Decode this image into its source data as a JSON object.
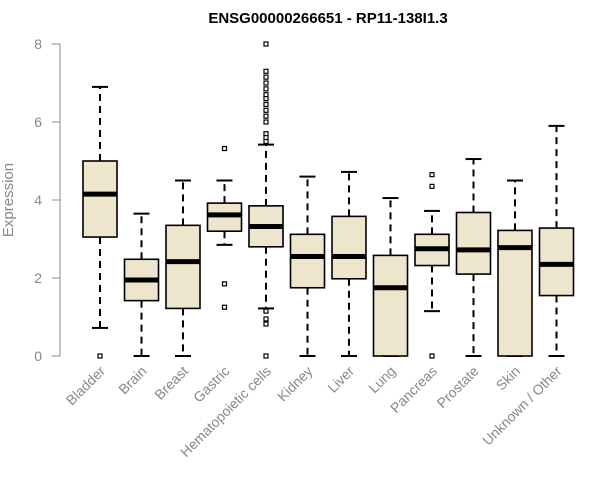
{
  "chart_data": {
    "type": "boxplot",
    "title": "ENSG00000266651 - RP11-138I1.3",
    "xlabel": "",
    "ylabel": "Expression",
    "ylim": [
      0,
      8
    ],
    "yticks": [
      0,
      2,
      4,
      6,
      8
    ],
    "colors": {
      "box_fill": "#ede6cc",
      "box_stroke": "#000000",
      "median": "#000000",
      "axis": "#888888",
      "title": "#000000"
    },
    "categories": [
      "Bladder",
      "Brain",
      "Breast",
      "Gastric",
      "Hematopoietic cells",
      "Kidney",
      "Liver",
      "Lung",
      "Pancreas",
      "Prostate",
      "Skin",
      "Unknown / Other"
    ],
    "boxes": [
      {
        "q1": 3.05,
        "median": 4.15,
        "q3": 5.0,
        "whisker_low": 0.72,
        "whisker_high": 6.9,
        "outliers": [
          0
        ]
      },
      {
        "q1": 1.42,
        "median": 1.95,
        "q3": 2.48,
        "whisker_low": 0,
        "whisker_high": 3.65,
        "outliers": []
      },
      {
        "q1": 1.22,
        "median": 2.42,
        "q3": 3.35,
        "whisker_low": 0,
        "whisker_high": 4.5,
        "outliers": []
      },
      {
        "q1": 3.2,
        "median": 3.62,
        "q3": 3.92,
        "whisker_low": 2.85,
        "whisker_high": 4.5,
        "outliers": [
          5.32,
          1.85,
          1.25
        ]
      },
      {
        "q1": 2.8,
        "median": 3.32,
        "q3": 3.85,
        "whisker_low": 1.22,
        "whisker_high": 5.42,
        "outliers": [
          8.0,
          7.3,
          7.15,
          7.0,
          6.85,
          6.7,
          6.6,
          6.45,
          6.3,
          6.15,
          6.0,
          5.7,
          5.6,
          5.5,
          1.15,
          0.95,
          0.82,
          0
        ]
      },
      {
        "q1": 1.75,
        "median": 2.55,
        "q3": 3.12,
        "whisker_low": 0,
        "whisker_high": 4.6,
        "outliers": []
      },
      {
        "q1": 1.98,
        "median": 2.55,
        "q3": 3.58,
        "whisker_low": 0,
        "whisker_high": 4.72,
        "outliers": []
      },
      {
        "q1": 0,
        "median": 1.75,
        "q3": 2.58,
        "whisker_low": 0,
        "whisker_high": 4.05,
        "outliers": []
      },
      {
        "q1": 2.32,
        "median": 2.75,
        "q3": 3.12,
        "whisker_low": 1.15,
        "whisker_high": 3.72,
        "outliers": [
          4.65,
          4.35,
          0
        ]
      },
      {
        "q1": 2.1,
        "median": 2.72,
        "q3": 3.68,
        "whisker_low": 0,
        "whisker_high": 5.05,
        "outliers": []
      },
      {
        "q1": 0,
        "median": 2.78,
        "q3": 3.22,
        "whisker_low": 0,
        "whisker_high": 4.5,
        "outliers": []
      },
      {
        "q1": 1.55,
        "median": 2.35,
        "q3": 3.28,
        "whisker_low": 0,
        "whisker_high": 5.9,
        "outliers": []
      }
    ]
  }
}
